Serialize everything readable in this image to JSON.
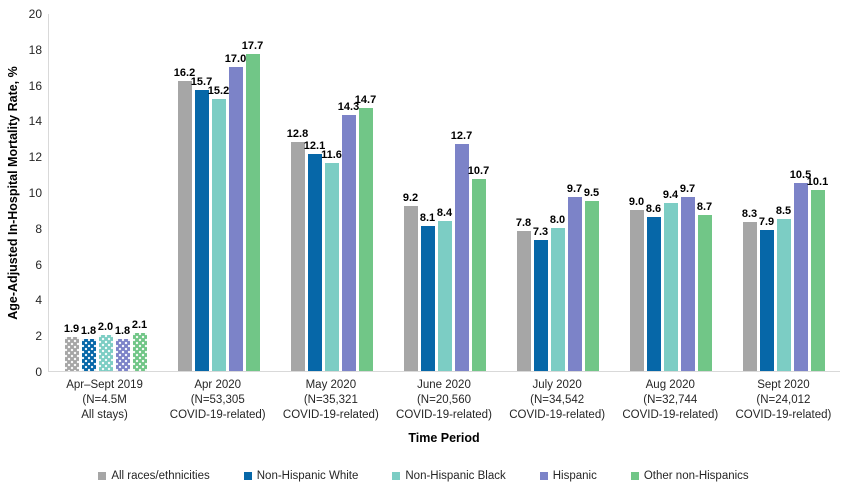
{
  "chart_data": {
    "type": "bar",
    "title": "",
    "ylabel": "Age-Adjusted In-Hospital Mortality Rate, %",
    "xlabel": "Time Period",
    "ylim": [
      0,
      20
    ],
    "ytick_step": 2,
    "grid": false,
    "legend_position": "bottom",
    "value_labels": true,
    "value_label_format": "one-decimal",
    "categories": [
      {
        "lines": [
          "Apr–Sept 2019",
          "(N=4.5M",
          "All stays)"
        ],
        "patterned": true
      },
      {
        "lines": [
          "Apr 2020",
          "(N=53,305",
          "COVID-19-related)"
        ],
        "patterned": false
      },
      {
        "lines": [
          "May 2020",
          "(N=35,321",
          "COVID-19-related)"
        ],
        "patterned": false
      },
      {
        "lines": [
          "June 2020",
          "(N=20,560",
          "COVID-19-related)"
        ],
        "patterned": false
      },
      {
        "lines": [
          "July 2020",
          "(N=34,542",
          "COVID-19-related)"
        ],
        "patterned": false
      },
      {
        "lines": [
          "Aug 2020",
          "(N=32,744",
          "COVID-19-related)"
        ],
        "patterned": false
      },
      {
        "lines": [
          "Sept 2020",
          "(N=24,012",
          "COVID-19-related)"
        ],
        "patterned": false
      }
    ],
    "series": [
      {
        "name": "All races/ethnicities",
        "color": "#A6A6A6",
        "values": [
          1.9,
          16.2,
          12.8,
          9.2,
          7.8,
          9.0,
          8.3
        ]
      },
      {
        "name": "Non-Hispanic White",
        "color": "#0667A8",
        "values": [
          1.8,
          15.7,
          12.1,
          8.1,
          7.3,
          8.6,
          7.9
        ]
      },
      {
        "name": "Non-Hispanic Black",
        "color": "#7CCDC4",
        "values": [
          2.0,
          15.2,
          11.6,
          8.4,
          8.0,
          9.4,
          8.5
        ]
      },
      {
        "name": "Hispanic",
        "color": "#7C83C8",
        "values": [
          1.8,
          17.0,
          14.3,
          12.7,
          9.7,
          9.7,
          10.5
        ]
      },
      {
        "name": "Other non-Hispanics",
        "color": "#71C687",
        "values": [
          2.1,
          17.7,
          14.7,
          10.7,
          9.5,
          8.7,
          10.1
        ]
      }
    ],
    "colors": {
      "axis_line": "#D9D9D9",
      "tick_text": "#262626",
      "value_label_text": "#000000"
    }
  }
}
